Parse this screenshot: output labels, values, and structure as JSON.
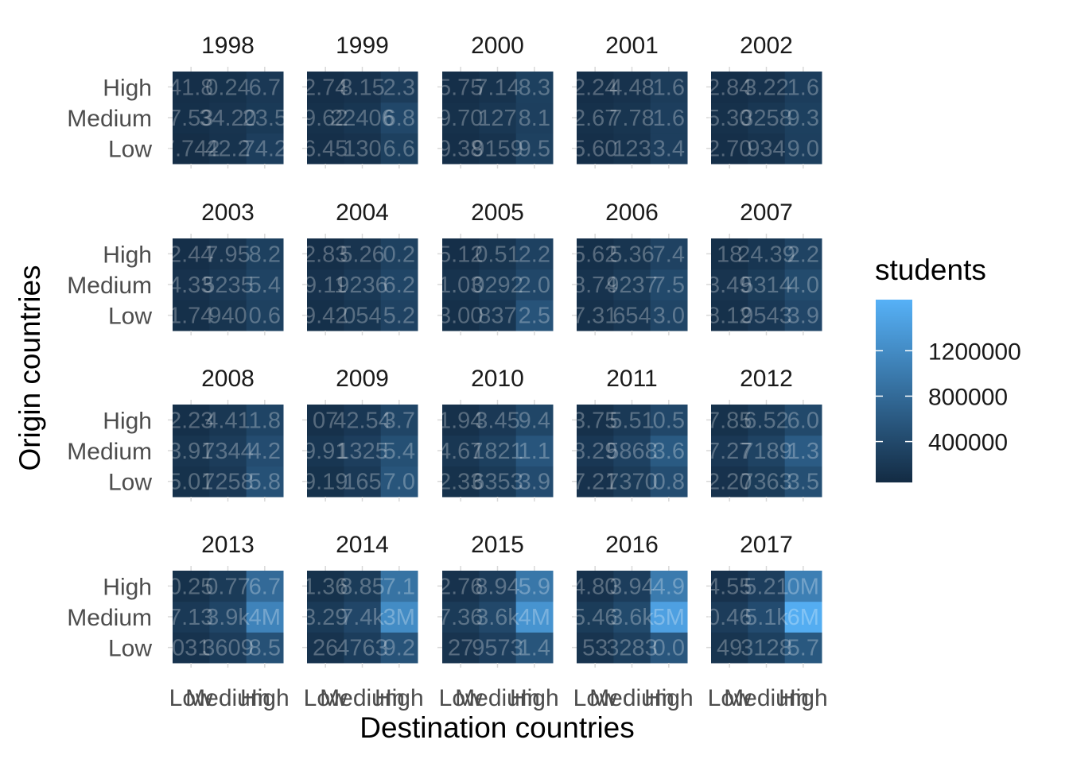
{
  "chart_data": {
    "type": "heatmap",
    "facet_by": "year",
    "facet_layout": "4 rows x 5 columns",
    "xlabel": "Destination countries",
    "ylabel": "Origin countries",
    "x_categories": [
      "Low",
      "Medium",
      "High"
    ],
    "y_categories": [
      "Low",
      "Medium",
      "High"
    ],
    "years": [
      "1998",
      "1999",
      "2000",
      "2001",
      "2002",
      "2003",
      "2004",
      "2005",
      "2006",
      "2007",
      "2008",
      "2009",
      "2010",
      "2011",
      "2012",
      "2013",
      "2014",
      "2015",
      "2016",
      "2017"
    ],
    "colors": {
      "low": "#132b43",
      "high": "#56b1f7",
      "tick_mark": "#d9d9d9"
    },
    "legend": {
      "title": "students",
      "position": "right",
      "range": [
        40000,
        1650000
      ],
      "breaks": [
        400000,
        800000,
        1200000
      ],
      "break_labels": [
        "400000",
        "800000",
        "1200000"
      ]
    },
    "grid": false,
    "note": "Cell values are read as [origin][destination] with rows Low, Medium, High and columns Low, Medium, High. Visible in-cell labels overlap and are illegible; values estimated from fill color.",
    "values": {
      "1998": [
        [
          80000,
          140000,
          270000
        ],
        [
          100000,
          150000,
          220000
        ],
        [
          90000,
          120000,
          200000
        ]
      ],
      "1999": [
        [
          90000,
          130000,
          290000
        ],
        [
          110000,
          170000,
          380000
        ],
        [
          90000,
          130000,
          250000
        ]
      ],
      "2000": [
        [
          90000,
          140000,
          300000
        ],
        [
          110000,
          180000,
          280000
        ],
        [
          90000,
          140000,
          290000
        ]
      ],
      "2001": [
        [
          90000,
          140000,
          270000
        ],
        [
          110000,
          160000,
          270000
        ],
        [
          90000,
          130000,
          250000
        ]
      ],
      "2002": [
        [
          90000,
          140000,
          280000
        ],
        [
          110000,
          180000,
          290000
        ],
        [
          90000,
          130000,
          260000
        ]
      ],
      "2003": [
        [
          100000,
          160000,
          300000
        ],
        [
          130000,
          200000,
          330000
        ],
        [
          90000,
          150000,
          290000
        ]
      ],
      "2004": [
        [
          100000,
          170000,
          320000
        ],
        [
          130000,
          210000,
          350000
        ],
        [
          90000,
          150000,
          300000
        ]
      ],
      "2005": [
        [
          100000,
          170000,
          520000
        ],
        [
          140000,
          220000,
          380000
        ],
        [
          90000,
          160000,
          310000
        ]
      ],
      "2006": [
        [
          110000,
          180000,
          350000
        ],
        [
          140000,
          230000,
          400000
        ],
        [
          100000,
          160000,
          320000
        ]
      ],
      "2007": [
        [
          110000,
          190000,
          370000
        ],
        [
          150000,
          240000,
          420000
        ],
        [
          100000,
          170000,
          330000
        ]
      ],
      "2008": [
        [
          120000,
          200000,
          500000
        ],
        [
          160000,
          250000,
          440000
        ],
        [
          100000,
          180000,
          340000
        ]
      ],
      "2009": [
        [
          120000,
          210000,
          540000
        ],
        [
          170000,
          270000,
          480000
        ],
        [
          110000,
          190000,
          350000
        ]
      ],
      "2010": [
        [
          120000,
          220000,
          430000
        ],
        [
          180000,
          290000,
          550000
        ],
        [
          110000,
          200000,
          360000
        ]
      ],
      "2011": [
        [
          130000,
          230000,
          450000
        ],
        [
          190000,
          310000,
          600000
        ],
        [
          110000,
          210000,
          380000
        ]
      ],
      "2012": [
        [
          130000,
          240000,
          470000
        ],
        [
          200000,
          330000,
          620000
        ],
        [
          120000,
          220000,
          400000
        ]
      ],
      "2013": [
        [
          140000,
          250000,
          500000
        ],
        [
          210000,
          350000,
          1100000
        ],
        [
          120000,
          230000,
          800000
        ]
      ],
      "2014": [
        [
          140000,
          260000,
          520000
        ],
        [
          220000,
          370000,
          1200000
        ],
        [
          120000,
          240000,
          900000
        ]
      ],
      "2015": [
        [
          150000,
          270000,
          540000
        ],
        [
          230000,
          390000,
          1300000
        ],
        [
          130000,
          250000,
          950000
        ]
      ],
      "2016": [
        [
          150000,
          280000,
          560000
        ],
        [
          240000,
          410000,
          1450000
        ],
        [
          130000,
          260000,
          1000000
        ]
      ],
      "2017": [
        [
          160000,
          290000,
          580000
        ],
        [
          250000,
          430000,
          1600000
        ],
        [
          130000,
          270000,
          1050000
        ]
      ]
    },
    "cell_labels": {
      "1998": [
        [
          "7.742",
          "42.2",
          "74.2"
        ],
        [
          "7.53",
          "34.20",
          "23.5"
        ],
        [
          "41.8",
          "0.24",
          "6.7"
        ]
      ],
      "1999": [
        [
          "6.45",
          "130",
          "6.6"
        ],
        [
          "9.62",
          "22406",
          "6.8"
        ],
        [
          "2.74",
          "8.15",
          "2.3"
        ]
      ],
      "2000": [
        [
          "9.38",
          "9159",
          "9.5"
        ],
        [
          "9.70",
          "127",
          "8.1"
        ],
        [
          "5.75",
          "7.14",
          "8.3"
        ]
      ],
      "2001": [
        [
          "5.60",
          "123",
          "3.4"
        ],
        [
          "2.67",
          "7.78",
          "1.6"
        ],
        [
          "2.24",
          "4.48",
          "1.6"
        ]
      ],
      "2002": [
        [
          "2.70",
          "934",
          "9.0"
        ],
        [
          "5.30",
          "3258",
          "9.3"
        ],
        [
          "2.84",
          "3.22",
          "1.6"
        ]
      ],
      "2003": [
        [
          "1.74",
          "940",
          "0.6"
        ],
        [
          "4.33",
          "5235",
          "5.4"
        ],
        [
          "2.44",
          "7.95",
          "8.2"
        ]
      ],
      "2004": [
        [
          "9.42",
          "054",
          "5.2"
        ],
        [
          "9.11",
          "9236",
          "6.2"
        ],
        [
          "2.83",
          "5.26",
          "0.2"
        ]
      ],
      "2005": [
        [
          "3.00",
          "837",
          "2.5"
        ],
        [
          "1.03",
          "0292",
          "2.0"
        ],
        [
          "5.12",
          "0.51",
          "2.2"
        ]
      ],
      "2006": [
        [
          "7.31",
          "654",
          "3.0"
        ],
        [
          "8.74",
          "9237",
          "7.5"
        ],
        [
          "5.62",
          "5.36",
          "7.4"
        ]
      ],
      "2007": [
        [
          "8.12",
          "9543",
          "3.9"
        ],
        [
          "3.49",
          "5314",
          "4.0"
        ],
        [
          "18",
          "24.39",
          "2.2"
        ]
      ],
      "2008": [
        [
          "5.01",
          "7258",
          "5.8"
        ],
        [
          "3.91",
          "7344",
          "4.2"
        ],
        [
          "2.23",
          "4.41",
          "1.8"
        ]
      ],
      "2009": [
        [
          "9.19",
          "165",
          "7.0"
        ],
        [
          "9.91",
          "1325",
          "5.4"
        ],
        [
          "07",
          "42.54",
          "3.7"
        ]
      ],
      "2010": [
        [
          "2.33",
          "6353",
          "3.9"
        ],
        [
          "4.67",
          "1821",
          "1.1"
        ],
        [
          "1.94",
          "3.45",
          "9.4"
        ]
      ],
      "2011": [
        [
          "7.21",
          "7370",
          "0.8"
        ],
        [
          "8.29",
          "5868",
          "3.6"
        ],
        [
          "3.75",
          "5.51",
          "0.5"
        ]
      ],
      "2012": [
        [
          "2.20",
          "7363",
          "3.5"
        ],
        [
          "7.27",
          "7189",
          "1.3"
        ],
        [
          "7.85",
          "6.52",
          "6.0"
        ]
      ],
      "2013": [
        [
          "031",
          "3609",
          "8.5"
        ],
        [
          "7.13",
          "3.9k",
          "4M"
        ],
        [
          "0.25",
          "0.77",
          "6.7"
        ]
      ],
      "2014": [
        [
          "26",
          "4763",
          "9.2"
        ],
        [
          "3.29",
          "7.4k",
          "3M"
        ],
        [
          "1.36",
          "8.85",
          "7.1"
        ]
      ],
      "2015": [
        [
          "27",
          "9573",
          "1.4"
        ],
        [
          "7.36",
          "3.6k",
          "4M"
        ],
        [
          "2.76",
          "8.94",
          "5.9"
        ]
      ],
      "2016": [
        [
          "53",
          "3283",
          "0.0"
        ],
        [
          "5.46",
          "3.6k",
          "5M"
        ],
        [
          "4.80",
          "3.94",
          "4.9"
        ]
      ],
      "2017": [
        [
          "49",
          "3128",
          "5.7"
        ],
        [
          "0.46",
          "5.1k",
          "6M"
        ],
        [
          "4.55",
          "5.21",
          "0M"
        ]
      ]
    }
  }
}
